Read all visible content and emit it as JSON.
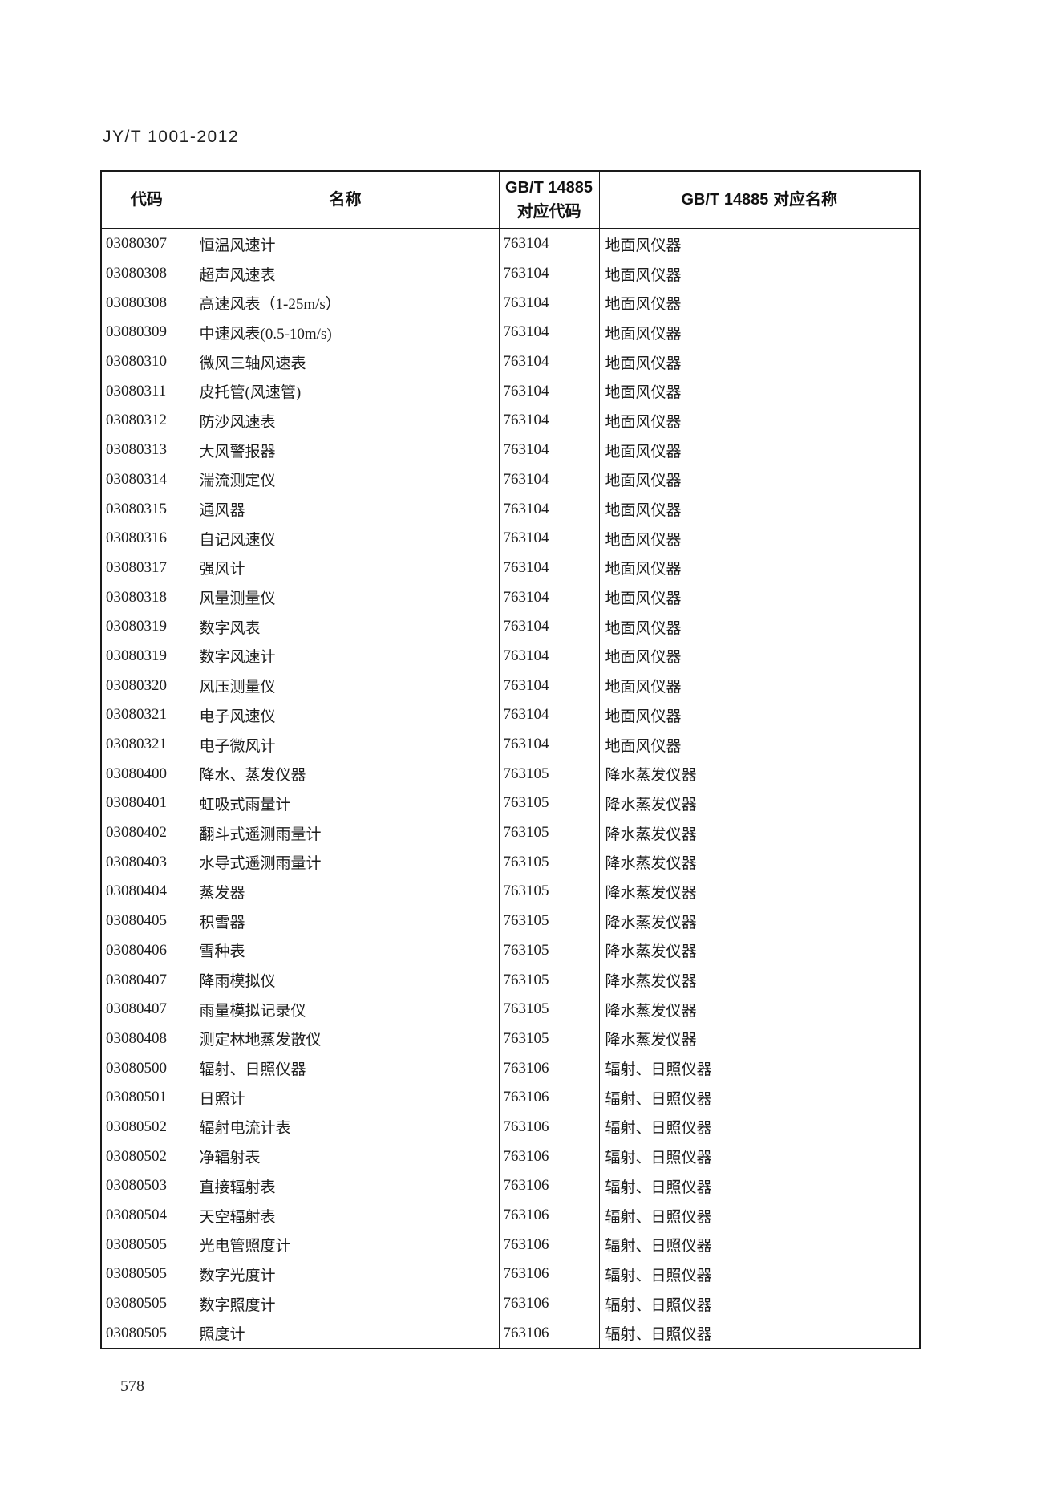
{
  "document": {
    "standard_code": "JY/T 1001-2012",
    "page_number": "578"
  },
  "table": {
    "headers": {
      "code": "代码",
      "name": "名称",
      "gbt_code_line1": "GB/T 14885",
      "gbt_code_line2": "对应代码",
      "gbt_name": "GB/T 14885 对应名称"
    },
    "rows": [
      {
        "code": "03080307",
        "name": "恒温风速计",
        "gbt_code": "763104",
        "gbt_name": "地面风仪器"
      },
      {
        "code": "03080308",
        "name": "超声风速表",
        "gbt_code": "763104",
        "gbt_name": "地面风仪器"
      },
      {
        "code": "03080308",
        "name": "高速风表（1-25m/s）",
        "gbt_code": "763104",
        "gbt_name": "地面风仪器"
      },
      {
        "code": "03080309",
        "name": "中速风表(0.5-10m/s)",
        "gbt_code": "763104",
        "gbt_name": "地面风仪器"
      },
      {
        "code": "03080310",
        "name": "微风三轴风速表",
        "gbt_code": "763104",
        "gbt_name": "地面风仪器"
      },
      {
        "code": "03080311",
        "name": "皮托管(风速管)",
        "gbt_code": "763104",
        "gbt_name": "地面风仪器"
      },
      {
        "code": "03080312",
        "name": "防沙风速表",
        "gbt_code": "763104",
        "gbt_name": "地面风仪器"
      },
      {
        "code": "03080313",
        "name": "大风警报器",
        "gbt_code": "763104",
        "gbt_name": "地面风仪器"
      },
      {
        "code": "03080314",
        "name": "湍流测定仪",
        "gbt_code": "763104",
        "gbt_name": "地面风仪器"
      },
      {
        "code": "03080315",
        "name": "通风器",
        "gbt_code": "763104",
        "gbt_name": "地面风仪器"
      },
      {
        "code": "03080316",
        "name": "自记风速仪",
        "gbt_code": "763104",
        "gbt_name": "地面风仪器"
      },
      {
        "code": "03080317",
        "name": "强风计",
        "gbt_code": "763104",
        "gbt_name": "地面风仪器"
      },
      {
        "code": "03080318",
        "name": "风量测量仪",
        "gbt_code": "763104",
        "gbt_name": "地面风仪器"
      },
      {
        "code": "03080319",
        "name": "数字风表",
        "gbt_code": "763104",
        "gbt_name": "地面风仪器"
      },
      {
        "code": "03080319",
        "name": "数字风速计",
        "gbt_code": "763104",
        "gbt_name": "地面风仪器"
      },
      {
        "code": "03080320",
        "name": "风压测量仪",
        "gbt_code": "763104",
        "gbt_name": "地面风仪器"
      },
      {
        "code": "03080321",
        "name": "电子风速仪",
        "gbt_code": "763104",
        "gbt_name": "地面风仪器"
      },
      {
        "code": "03080321",
        "name": "电子微风计",
        "gbt_code": "763104",
        "gbt_name": "地面风仪器"
      },
      {
        "code": "03080400",
        "name": "降水、蒸发仪器",
        "gbt_code": "763105",
        "gbt_name": "降水蒸发仪器"
      },
      {
        "code": "03080401",
        "name": "虹吸式雨量计",
        "gbt_code": "763105",
        "gbt_name": "降水蒸发仪器"
      },
      {
        "code": "03080402",
        "name": "翻斗式遥测雨量计",
        "gbt_code": "763105",
        "gbt_name": "降水蒸发仪器"
      },
      {
        "code": "03080403",
        "name": "水导式遥测雨量计",
        "gbt_code": "763105",
        "gbt_name": "降水蒸发仪器"
      },
      {
        "code": "03080404",
        "name": "蒸发器",
        "gbt_code": "763105",
        "gbt_name": "降水蒸发仪器"
      },
      {
        "code": "03080405",
        "name": "积雪器",
        "gbt_code": "763105",
        "gbt_name": "降水蒸发仪器"
      },
      {
        "code": "03080406",
        "name": "雪种表",
        "gbt_code": "763105",
        "gbt_name": "降水蒸发仪器"
      },
      {
        "code": "03080407",
        "name": "降雨模拟仪",
        "gbt_code": "763105",
        "gbt_name": "降水蒸发仪器"
      },
      {
        "code": "03080407",
        "name": "雨量模拟记录仪",
        "gbt_code": "763105",
        "gbt_name": "降水蒸发仪器"
      },
      {
        "code": "03080408",
        "name": "测定林地蒸发散仪",
        "gbt_code": "763105",
        "gbt_name": "降水蒸发仪器"
      },
      {
        "code": "03080500",
        "name": "辐射、日照仪器",
        "gbt_code": "763106",
        "gbt_name": "辐射、日照仪器"
      },
      {
        "code": "03080501",
        "name": "日照计",
        "gbt_code": "763106",
        "gbt_name": "辐射、日照仪器"
      },
      {
        "code": "03080502",
        "name": "辐射电流计表",
        "gbt_code": "763106",
        "gbt_name": "辐射、日照仪器"
      },
      {
        "code": "03080502",
        "name": "净辐射表",
        "gbt_code": "763106",
        "gbt_name": "辐射、日照仪器"
      },
      {
        "code": "03080503",
        "name": "直接辐射表",
        "gbt_code": "763106",
        "gbt_name": "辐射、日照仪器"
      },
      {
        "code": "03080504",
        "name": "天空辐射表",
        "gbt_code": "763106",
        "gbt_name": "辐射、日照仪器"
      },
      {
        "code": "03080505",
        "name": "光电管照度计",
        "gbt_code": "763106",
        "gbt_name": "辐射、日照仪器"
      },
      {
        "code": "03080505",
        "name": "数字光度计",
        "gbt_code": "763106",
        "gbt_name": "辐射、日照仪器"
      },
      {
        "code": "03080505",
        "name": "数字照度计",
        "gbt_code": "763106",
        "gbt_name": "辐射、日照仪器"
      },
      {
        "code": "03080505",
        "name": "照度计",
        "gbt_code": "763106",
        "gbt_name": "辐射、日照仪器"
      }
    ]
  }
}
